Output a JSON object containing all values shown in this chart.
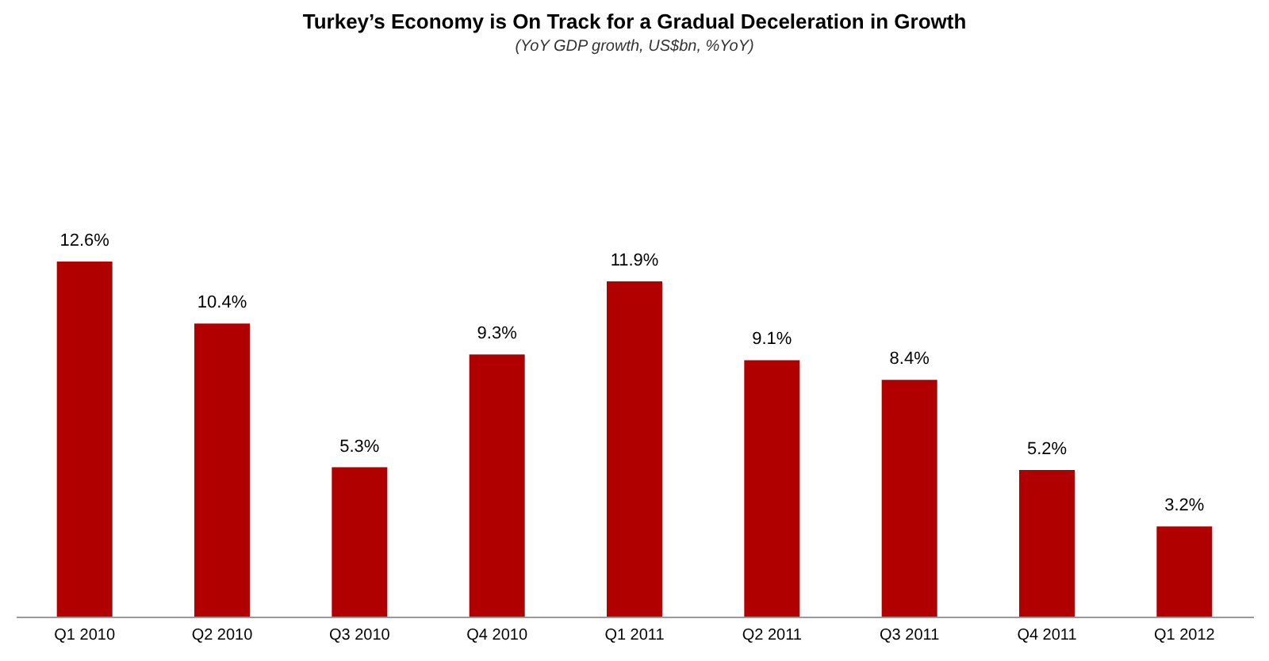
{
  "chart_data": {
    "type": "bar",
    "title": "Turkey’s Economy is On Track for a Gradual Deceleration in Growth",
    "subtitle": "(YoY GDP growth,  US$bn, %YoY)",
    "categories": [
      "Q1 2010",
      "Q2 2010",
      "Q3 2010",
      "Q4 2010",
      "Q1 2011",
      "Q2 2011",
      "Q3 2011",
      "Q4 2011",
      "Q1 2012"
    ],
    "values": [
      12.6,
      10.4,
      5.3,
      9.3,
      11.9,
      9.1,
      8.4,
      5.2,
      3.2
    ],
    "value_labels": [
      "12.6%",
      "10.4%",
      "5.3%",
      "9.3%",
      "11.9%",
      "9.1%",
      "8.4%",
      "5.2%",
      "3.2%"
    ],
    "color": "#b00000",
    "grid": false
  }
}
